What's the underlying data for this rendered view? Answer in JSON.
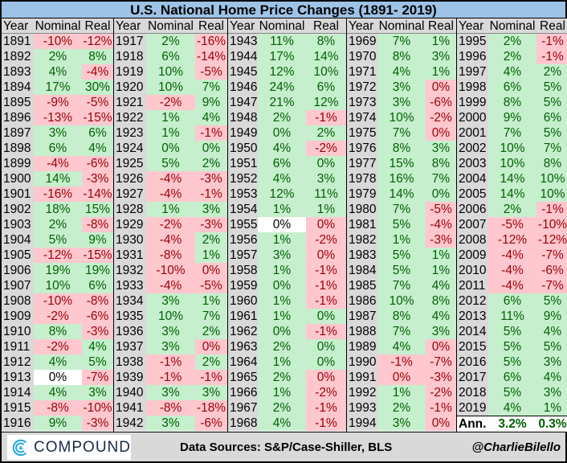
{
  "title": "U.S. National Home Price Changes (1891- 2019)",
  "headers": {
    "year": "Year",
    "nominal": "Nominal",
    "real": "Real"
  },
  "colors": {
    "positive_bg": "#c6efce",
    "positive_text": "#006100",
    "negative_bg": "#ffc7ce",
    "negative_text": "#9c0006",
    "header": "#9dc3e6"
  },
  "groups": [
    {
      "rows": [
        [
          "1891",
          "-10%",
          "-12%",
          "r",
          "r"
        ],
        [
          "1892",
          "2%",
          "8%",
          "g",
          "g"
        ],
        [
          "1893",
          "4%",
          "-4%",
          "g",
          "r"
        ],
        [
          "1894",
          "17%",
          "30%",
          "g",
          "g"
        ],
        [
          "1895",
          "-9%",
          "-5%",
          "r",
          "r"
        ],
        [
          "1896",
          "-13%",
          "-15%",
          "r",
          "r"
        ],
        [
          "1897",
          "3%",
          "6%",
          "g",
          "g"
        ],
        [
          "1898",
          "6%",
          "4%",
          "g",
          "g"
        ],
        [
          "1899",
          "-4%",
          "-6%",
          "r",
          "r"
        ],
        [
          "1900",
          "14%",
          "-3%",
          "g",
          "r"
        ],
        [
          "1901",
          "-16%",
          "-14%",
          "r",
          "r"
        ],
        [
          "1902",
          "18%",
          "15%",
          "g",
          "g"
        ],
        [
          "1903",
          "2%",
          "-8%",
          "g",
          "r"
        ],
        [
          "1904",
          "5%",
          "9%",
          "g",
          "g"
        ],
        [
          "1905",
          "-12%",
          "-15%",
          "r",
          "r"
        ],
        [
          "1906",
          "19%",
          "19%",
          "g",
          "g"
        ],
        [
          "1907",
          "10%",
          "6%",
          "g",
          "g"
        ],
        [
          "1908",
          "-10%",
          "-8%",
          "r",
          "r"
        ],
        [
          "1909",
          "-2%",
          "-6%",
          "r",
          "r"
        ],
        [
          "1910",
          "8%",
          "-3%",
          "g",
          "r"
        ],
        [
          "1911",
          "-2%",
          "4%",
          "r",
          "g"
        ],
        [
          "1912",
          "4%",
          "5%",
          "g",
          "g"
        ],
        [
          "1913",
          "0%",
          "-7%",
          "w",
          "r"
        ],
        [
          "1914",
          "4%",
          "3%",
          "g",
          "g"
        ],
        [
          "1915",
          "-8%",
          "-10%",
          "r",
          "r"
        ],
        [
          "1916",
          "9%",
          "-3%",
          "g",
          "r"
        ]
      ]
    },
    {
      "rows": [
        [
          "1917",
          "2%",
          "-16%",
          "g",
          "r"
        ],
        [
          "1918",
          "6%",
          "-14%",
          "g",
          "r"
        ],
        [
          "1919",
          "10%",
          "-5%",
          "g",
          "r"
        ],
        [
          "1920",
          "10%",
          "7%",
          "g",
          "g"
        ],
        [
          "1921",
          "-2%",
          "9%",
          "r",
          "g"
        ],
        [
          "1922",
          "1%",
          "4%",
          "g",
          "g"
        ],
        [
          "1923",
          "1%",
          "-1%",
          "g",
          "r"
        ],
        [
          "1924",
          "0%",
          "0%",
          "g",
          "g"
        ],
        [
          "1925",
          "5%",
          "2%",
          "g",
          "g"
        ],
        [
          "1926",
          "-4%",
          "-3%",
          "r",
          "r"
        ],
        [
          "1927",
          "-4%",
          "-1%",
          "r",
          "r"
        ],
        [
          "1928",
          "1%",
          "3%",
          "g",
          "g"
        ],
        [
          "1929",
          "-2%",
          "-3%",
          "r",
          "r"
        ],
        [
          "1930",
          "-4%",
          "2%",
          "r",
          "g"
        ],
        [
          "1931",
          "-8%",
          "1%",
          "r",
          "g"
        ],
        [
          "1932",
          "-10%",
          "0%",
          "r",
          "r"
        ],
        [
          "1933",
          "-4%",
          "-5%",
          "r",
          "r"
        ],
        [
          "1934",
          "3%",
          "1%",
          "g",
          "g"
        ],
        [
          "1935",
          "10%",
          "7%",
          "g",
          "g"
        ],
        [
          "1936",
          "3%",
          "2%",
          "g",
          "g"
        ],
        [
          "1937",
          "3%",
          "0%",
          "g",
          "r"
        ],
        [
          "1938",
          "-1%",
          "2%",
          "r",
          "g"
        ],
        [
          "1939",
          "-1%",
          "-1%",
          "r",
          "r"
        ],
        [
          "1940",
          "3%",
          "3%",
          "g",
          "g"
        ],
        [
          "1941",
          "-8%",
          "-18%",
          "r",
          "r"
        ],
        [
          "1942",
          "3%",
          "-6%",
          "g",
          "r"
        ]
      ]
    },
    {
      "rows": [
        [
          "1943",
          "11%",
          "8%",
          "g",
          "g"
        ],
        [
          "1944",
          "17%",
          "14%",
          "g",
          "g"
        ],
        [
          "1945",
          "12%",
          "10%",
          "g",
          "g"
        ],
        [
          "1946",
          "24%",
          "6%",
          "g",
          "g"
        ],
        [
          "1947",
          "21%",
          "12%",
          "g",
          "g"
        ],
        [
          "1948",
          "2%",
          "-1%",
          "g",
          "r"
        ],
        [
          "1949",
          "0%",
          "2%",
          "g",
          "g"
        ],
        [
          "1950",
          "4%",
          "-2%",
          "g",
          "r"
        ],
        [
          "1951",
          "6%",
          "0%",
          "g",
          "g"
        ],
        [
          "1952",
          "4%",
          "3%",
          "g",
          "g"
        ],
        [
          "1953",
          "12%",
          "11%",
          "g",
          "g"
        ],
        [
          "1954",
          "1%",
          "1%",
          "g",
          "g"
        ],
        [
          "1955",
          "0%",
          "0%",
          "w",
          "r"
        ],
        [
          "1956",
          "1%",
          "-2%",
          "g",
          "r"
        ],
        [
          "1957",
          "3%",
          "0%",
          "g",
          "r"
        ],
        [
          "1958",
          "1%",
          "-1%",
          "g",
          "r"
        ],
        [
          "1959",
          "0%",
          "-1%",
          "g",
          "r"
        ],
        [
          "1960",
          "1%",
          "-1%",
          "g",
          "r"
        ],
        [
          "1961",
          "1%",
          "0%",
          "g",
          "g"
        ],
        [
          "1962",
          "0%",
          "-1%",
          "g",
          "r"
        ],
        [
          "1963",
          "2%",
          "0%",
          "g",
          "g"
        ],
        [
          "1964",
          "1%",
          "0%",
          "g",
          "g"
        ],
        [
          "1965",
          "2%",
          "0%",
          "g",
          "r"
        ],
        [
          "1966",
          "1%",
          "-2%",
          "g",
          "r"
        ],
        [
          "1967",
          "2%",
          "-1%",
          "g",
          "r"
        ],
        [
          "1968",
          "4%",
          "-1%",
          "g",
          "r"
        ]
      ]
    },
    {
      "rows": [
        [
          "1969",
          "7%",
          "1%",
          "g",
          "g"
        ],
        [
          "1970",
          "8%",
          "3%",
          "g",
          "g"
        ],
        [
          "1971",
          "4%",
          "1%",
          "g",
          "g"
        ],
        [
          "1972",
          "3%",
          "0%",
          "g",
          "r"
        ],
        [
          "1973",
          "3%",
          "-6%",
          "g",
          "r"
        ],
        [
          "1974",
          "10%",
          "-2%",
          "g",
          "r"
        ],
        [
          "1975",
          "7%",
          "0%",
          "g",
          "r"
        ],
        [
          "1976",
          "8%",
          "3%",
          "g",
          "g"
        ],
        [
          "1977",
          "15%",
          "8%",
          "g",
          "g"
        ],
        [
          "1978",
          "16%",
          "7%",
          "g",
          "g"
        ],
        [
          "1979",
          "14%",
          "0%",
          "g",
          "g"
        ],
        [
          "1980",
          "7%",
          "-5%",
          "g",
          "r"
        ],
        [
          "1981",
          "5%",
          "-4%",
          "g",
          "r"
        ],
        [
          "1982",
          "1%",
          "-3%",
          "g",
          "r"
        ],
        [
          "1983",
          "5%",
          "1%",
          "g",
          "g"
        ],
        [
          "1984",
          "5%",
          "1%",
          "g",
          "g"
        ],
        [
          "1985",
          "7%",
          "4%",
          "g",
          "g"
        ],
        [
          "1986",
          "10%",
          "8%",
          "g",
          "g"
        ],
        [
          "1987",
          "8%",
          "4%",
          "g",
          "g"
        ],
        [
          "1988",
          "7%",
          "3%",
          "g",
          "g"
        ],
        [
          "1989",
          "4%",
          "0%",
          "g",
          "r"
        ],
        [
          "1990",
          "-1%",
          "-7%",
          "r",
          "r"
        ],
        [
          "1991",
          "0%",
          "-3%",
          "r",
          "r"
        ],
        [
          "1992",
          "1%",
          "-2%",
          "g",
          "r"
        ],
        [
          "1993",
          "2%",
          "-1%",
          "g",
          "r"
        ],
        [
          "1994",
          "3%",
          "0%",
          "g",
          "r"
        ]
      ]
    },
    {
      "rows": [
        [
          "1995",
          "2%",
          "-1%",
          "g",
          "r"
        ],
        [
          "1996",
          "2%",
          "-1%",
          "g",
          "r"
        ],
        [
          "1997",
          "4%",
          "2%",
          "g",
          "g"
        ],
        [
          "1998",
          "6%",
          "5%",
          "g",
          "g"
        ],
        [
          "1999",
          "8%",
          "5%",
          "g",
          "g"
        ],
        [
          "2000",
          "9%",
          "6%",
          "g",
          "g"
        ],
        [
          "2001",
          "7%",
          "5%",
          "g",
          "g"
        ],
        [
          "2002",
          "10%",
          "7%",
          "g",
          "g"
        ],
        [
          "2003",
          "10%",
          "8%",
          "g",
          "g"
        ],
        [
          "2004",
          "14%",
          "10%",
          "g",
          "g"
        ],
        [
          "2005",
          "14%",
          "10%",
          "g",
          "g"
        ],
        [
          "2006",
          "2%",
          "-1%",
          "g",
          "r"
        ],
        [
          "2007",
          "-5%",
          "-10%",
          "r",
          "r"
        ],
        [
          "2008",
          "-12%",
          "-12%",
          "r",
          "r"
        ],
        [
          "2009",
          "-4%",
          "-7%",
          "r",
          "r"
        ],
        [
          "2010",
          "-4%",
          "-6%",
          "r",
          "r"
        ],
        [
          "2011",
          "-4%",
          "-7%",
          "r",
          "r"
        ],
        [
          "2012",
          "6%",
          "5%",
          "g",
          "g"
        ],
        [
          "2013",
          "11%",
          "9%",
          "g",
          "g"
        ],
        [
          "2014",
          "5%",
          "4%",
          "g",
          "g"
        ],
        [
          "2015",
          "5%",
          "5%",
          "g",
          "g"
        ],
        [
          "2016",
          "5%",
          "3%",
          "g",
          "g"
        ],
        [
          "2017",
          "6%",
          "4%",
          "g",
          "g"
        ],
        [
          "2018",
          "5%",
          "3%",
          "g",
          "g"
        ],
        [
          "2019",
          "4%",
          "1%",
          "g",
          "g"
        ]
      ],
      "annualized": {
        "label": "Ann.",
        "nominal": "3.2%",
        "real": "0.3%"
      }
    }
  ],
  "footer": {
    "logo_text": "COMPOUND",
    "sources": "Data Sources: S&P/Case-Shiller, BLS",
    "handle": "@CharlieBilello"
  },
  "chart_data": {
    "type": "table",
    "title": "U.S. National Home Price Changes (1891- 2019)",
    "columns": [
      "Year",
      "Nominal",
      "Real"
    ],
    "annualized": {
      "nominal": "3.2%",
      "real": "0.3%"
    }
  }
}
